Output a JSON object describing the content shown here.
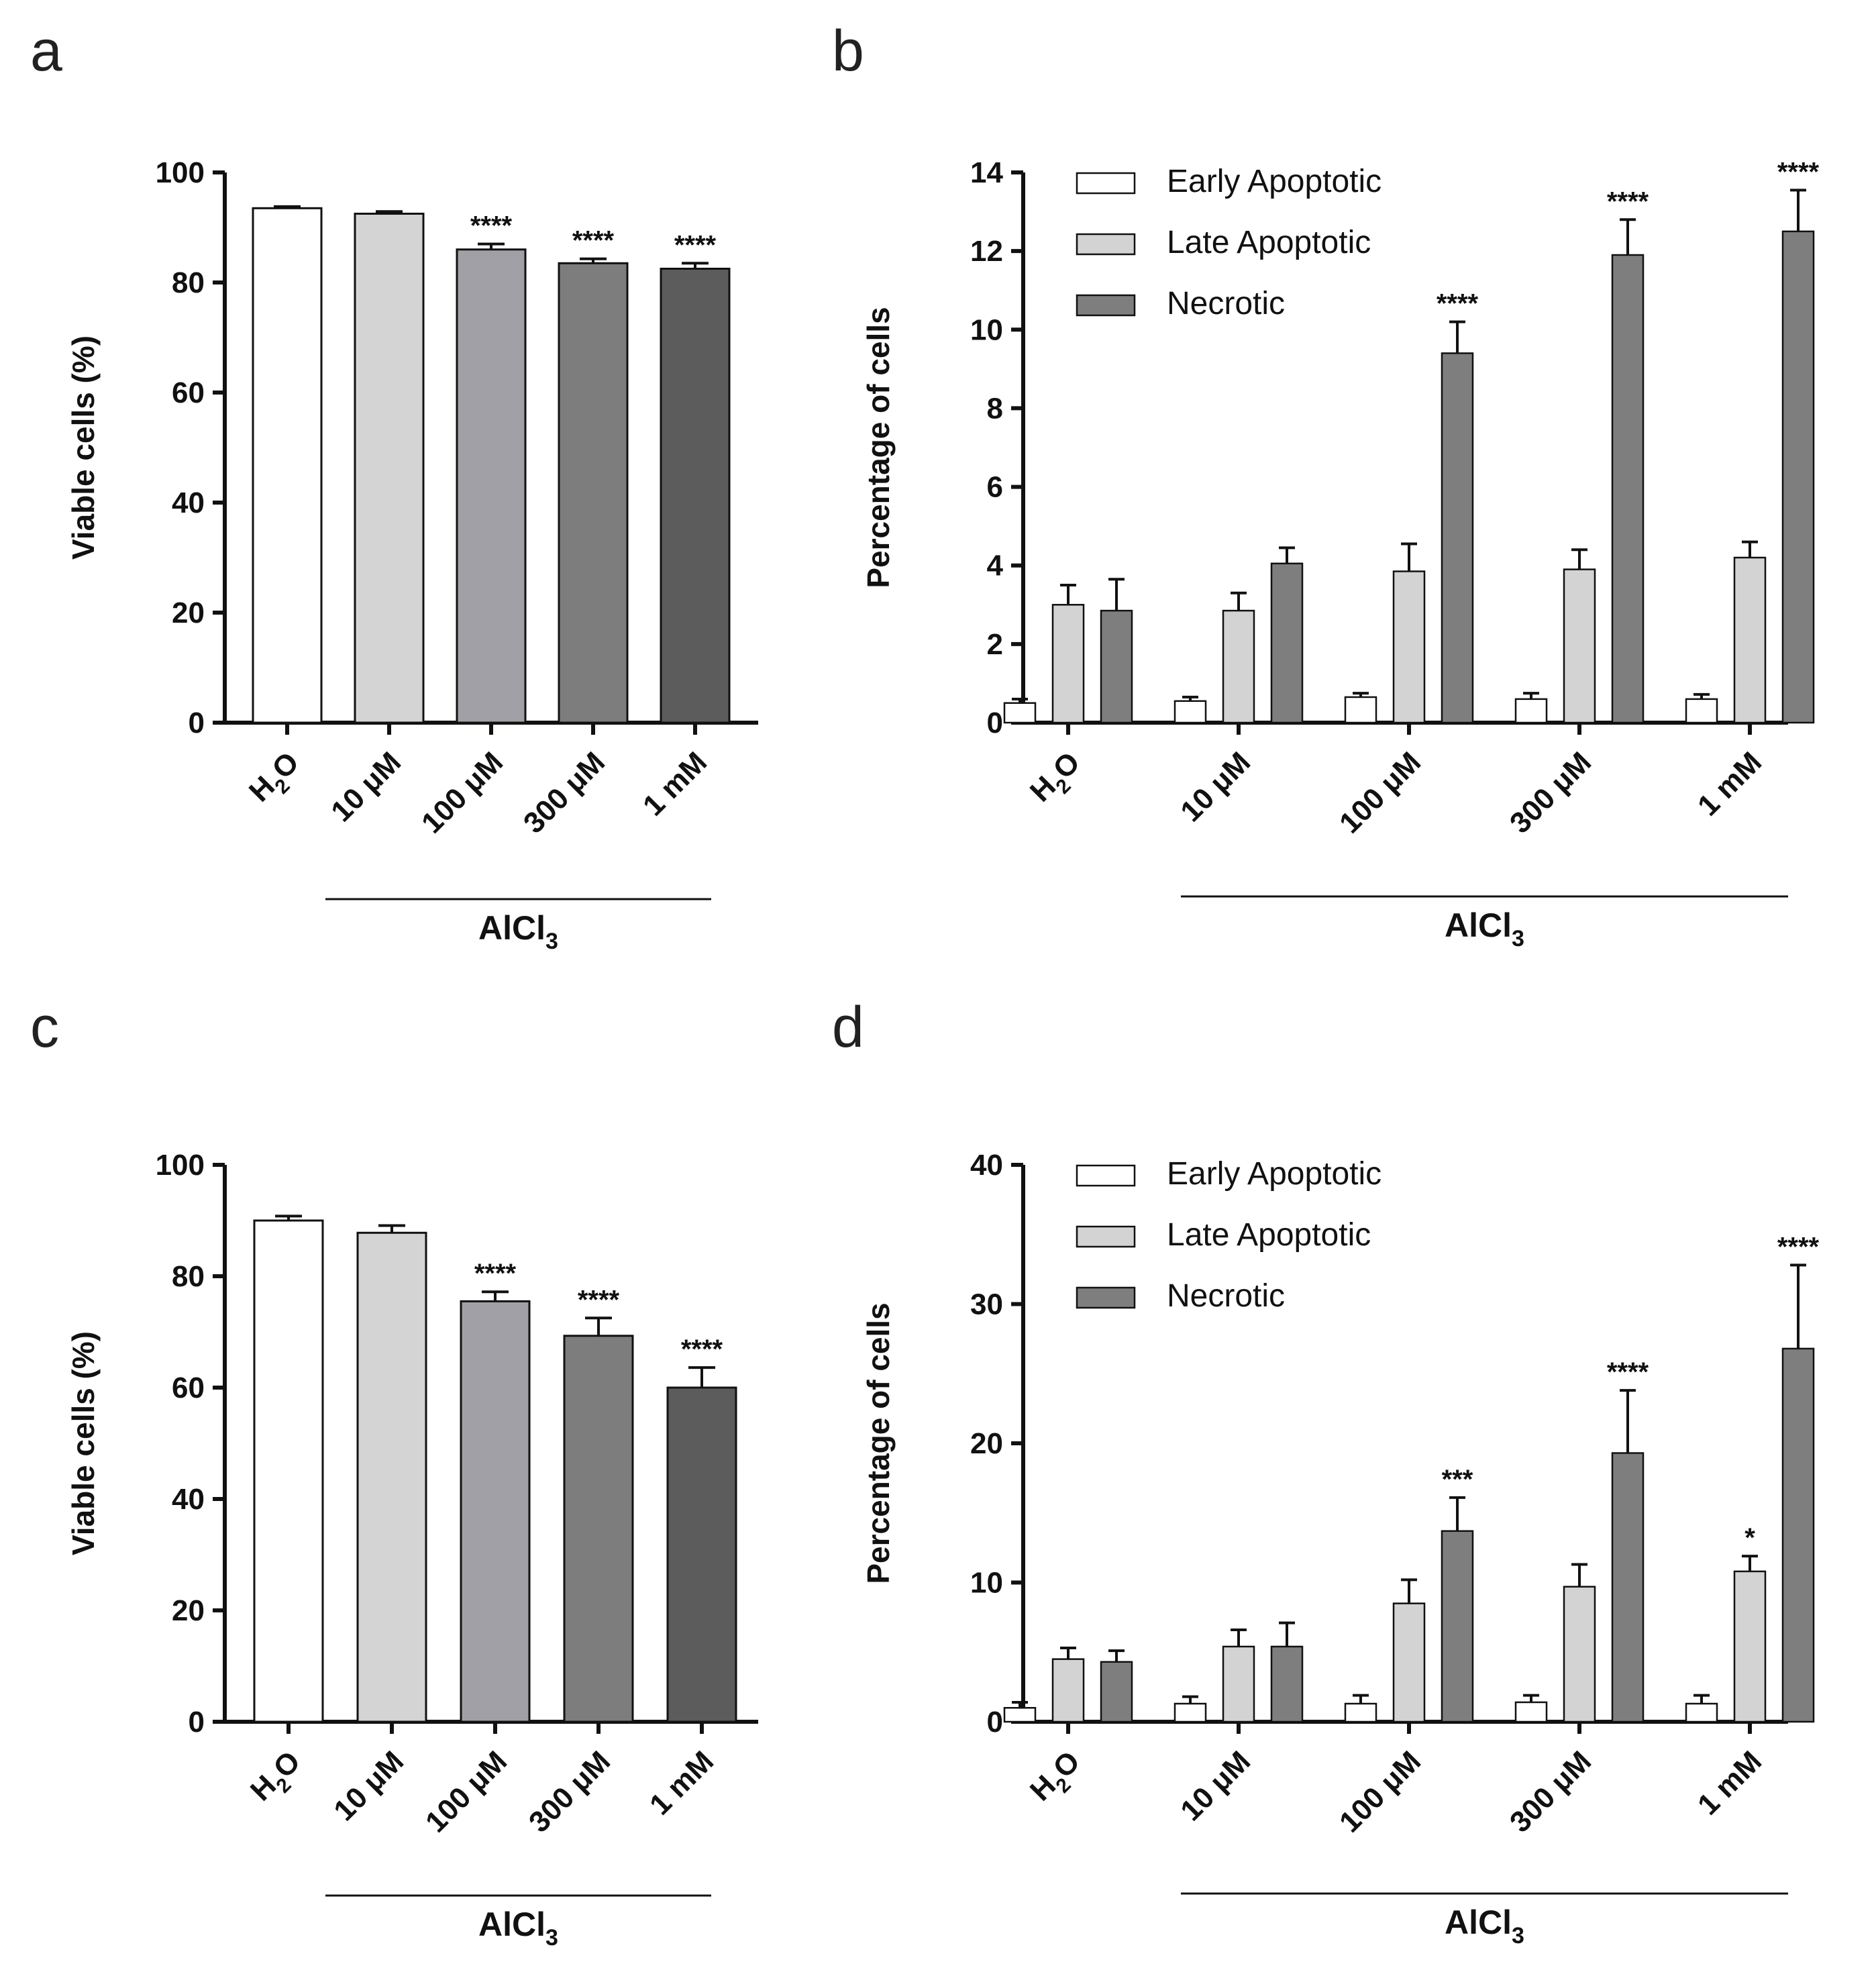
{
  "colors": {
    "axis": "#111111",
    "early": "#ffffff",
    "late": "#d3d3d3",
    "necrotic": "#7e7e7e",
    "bar_shades": [
      "#ffffff",
      "#d4d4d4",
      "#a0a0a6",
      "#7d7d7d",
      "#5c5c5c"
    ]
  },
  "chart_data": [
    {
      "id": "a",
      "panel_label": "a",
      "type": "bar",
      "title": "",
      "ylabel": "Viable cells (%)",
      "xlabel": "",
      "group_label": "AlCl3",
      "categories": [
        {
          "main": "H",
          "sub": "2",
          "tail": "O"
        },
        {
          "main": "10 μM",
          "sub": "",
          "tail": ""
        },
        {
          "main": "100 μM",
          "sub": "",
          "tail": ""
        },
        {
          "main": "300 μM",
          "sub": "",
          "tail": ""
        },
        {
          "main": "1 mM",
          "sub": "",
          "tail": ""
        }
      ],
      "values": [
        93.5,
        92.5,
        86.0,
        83.5,
        82.5
      ],
      "errors": [
        0.3,
        0.4,
        1.0,
        0.8,
        1.0
      ],
      "significance": [
        "",
        "",
        "****",
        "****",
        "****"
      ],
      "ylim": [
        0,
        100
      ],
      "yticks": [
        0,
        20,
        40,
        60,
        80,
        100
      ]
    },
    {
      "id": "b",
      "panel_label": "b",
      "type": "bar",
      "title": "",
      "ylabel": "Percentage of cells",
      "xlabel": "",
      "group_label": "AlCl3",
      "legend": "top-left",
      "categories": [
        {
          "main": "H",
          "sub": "2",
          "tail": "O"
        },
        {
          "main": "10 μM",
          "sub": "",
          "tail": ""
        },
        {
          "main": "100 μM",
          "sub": "",
          "tail": ""
        },
        {
          "main": "300 μM",
          "sub": "",
          "tail": ""
        },
        {
          "main": "1 mM",
          "sub": "",
          "tail": ""
        }
      ],
      "series": [
        {
          "name": "Early Apoptotic",
          "values": [
            0.5,
            0.55,
            0.65,
            0.6,
            0.6
          ],
          "errors": [
            0.1,
            0.1,
            0.1,
            0.15,
            0.12
          ],
          "significance": [
            "",
            "",
            "",
            "",
            ""
          ]
        },
        {
          "name": "Late Apoptotic",
          "values": [
            3.0,
            2.85,
            3.85,
            3.9,
            4.2
          ],
          "errors": [
            0.5,
            0.45,
            0.7,
            0.5,
            0.4
          ],
          "significance": [
            "",
            "",
            "",
            "",
            ""
          ]
        },
        {
          "name": "Necrotic",
          "values": [
            2.85,
            4.05,
            9.4,
            11.9,
            12.5
          ],
          "errors": [
            0.8,
            0.4,
            0.8,
            0.9,
            1.05
          ],
          "significance": [
            "",
            "",
            "****",
            "****",
            "****"
          ]
        }
      ],
      "ylim": [
        0,
        14
      ],
      "yticks": [
        0,
        2,
        4,
        6,
        8,
        10,
        12,
        14
      ]
    },
    {
      "id": "c",
      "panel_label": "c",
      "type": "bar",
      "title": "",
      "ylabel": "Viable cells (%)",
      "xlabel": "",
      "group_label": "AlCl3",
      "categories": [
        {
          "main": "H",
          "sub": "2",
          "tail": "O"
        },
        {
          "main": "10 μM",
          "sub": "",
          "tail": ""
        },
        {
          "main": "100 μM",
          "sub": "",
          "tail": ""
        },
        {
          "main": "300 μM",
          "sub": "",
          "tail": ""
        },
        {
          "main": "1 mM",
          "sub": "",
          "tail": ""
        }
      ],
      "values": [
        90.0,
        87.8,
        75.5,
        69.3,
        60.0
      ],
      "errors": [
        0.8,
        1.3,
        1.7,
        3.2,
        3.6
      ],
      "significance": [
        "",
        "",
        "****",
        "****",
        "****"
      ],
      "ylim": [
        0,
        100
      ],
      "yticks": [
        0,
        20,
        40,
        60,
        80,
        100
      ]
    },
    {
      "id": "d",
      "panel_label": "d",
      "type": "bar",
      "title": "",
      "ylabel": "Percentage of cells",
      "xlabel": "",
      "group_label": "AlCl3",
      "legend": "top-left",
      "categories": [
        {
          "main": "H",
          "sub": "2",
          "tail": "O"
        },
        {
          "main": "10 μM",
          "sub": "",
          "tail": ""
        },
        {
          "main": "100 μM",
          "sub": "",
          "tail": ""
        },
        {
          "main": "300 μM",
          "sub": "",
          "tail": ""
        },
        {
          "main": "1 mM",
          "sub": "",
          "tail": ""
        }
      ],
      "series": [
        {
          "name": "Early Apoptotic",
          "values": [
            1.0,
            1.3,
            1.3,
            1.4,
            1.3
          ],
          "errors": [
            0.4,
            0.5,
            0.6,
            0.5,
            0.6
          ],
          "significance": [
            "",
            "",
            "",
            "",
            ""
          ]
        },
        {
          "name": "Late Apoptotic",
          "values": [
            4.5,
            5.4,
            8.5,
            9.7,
            10.8
          ],
          "errors": [
            0.8,
            1.2,
            1.7,
            1.6,
            1.1
          ],
          "significance": [
            "",
            "",
            "",
            "",
            "*"
          ]
        },
        {
          "name": "Necrotic",
          "values": [
            4.3,
            5.4,
            13.7,
            19.3,
            26.8
          ],
          "errors": [
            0.8,
            1.7,
            2.4,
            4.5,
            6.0
          ],
          "significance": [
            "",
            "",
            "***",
            "****",
            "****"
          ]
        }
      ],
      "ylim": [
        0,
        40
      ],
      "yticks": [
        0,
        10,
        20,
        30,
        40
      ]
    }
  ]
}
